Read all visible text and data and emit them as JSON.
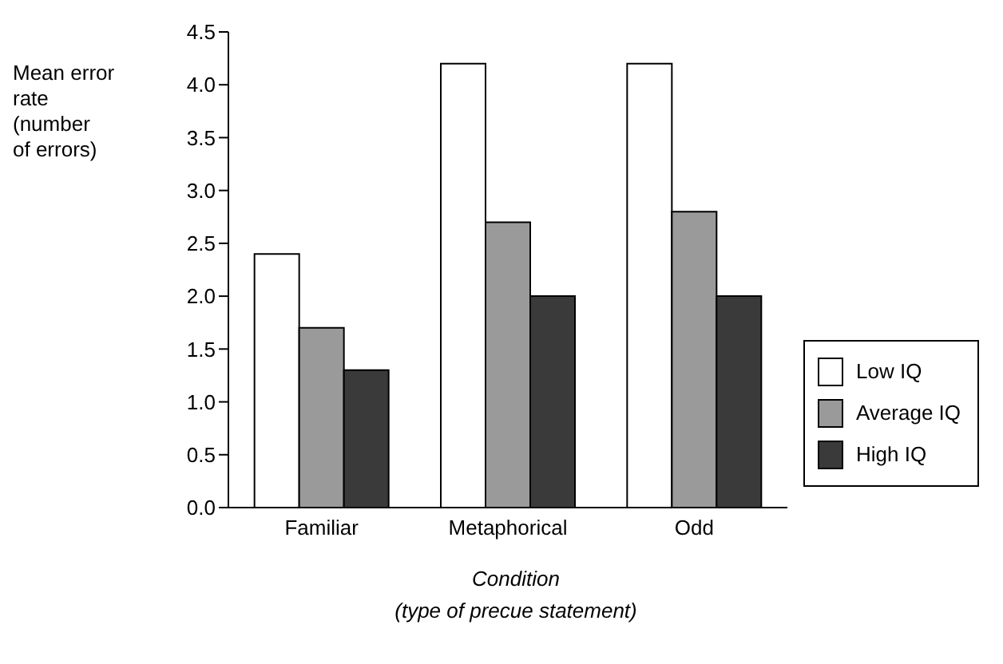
{
  "chart_data": {
    "type": "bar",
    "ylabel": "Mean error\nrate\n(number\nof errors)",
    "xlabel": "Condition\n(type of precue statement)",
    "categories": [
      "Familiar",
      "Metaphorical",
      "Odd"
    ],
    "series": [
      {
        "name": "Low IQ",
        "color": "#ffffff",
        "values": [
          2.4,
          4.2,
          4.2
        ]
      },
      {
        "name": "Average IQ",
        "color": "#9a9a9a",
        "values": [
          1.7,
          2.7,
          2.8
        ]
      },
      {
        "name": "High IQ",
        "color": "#3a3a3a",
        "values": [
          1.3,
          2.0,
          2.0
        ]
      }
    ],
    "ylim": [
      0,
      4.5
    ],
    "yticks": [
      {
        "value": 0,
        "label": "0.0"
      },
      0.5,
      {
        "value": 1,
        "label": "1.0"
      },
      1.5,
      {
        "value": 2,
        "label": "2.0"
      },
      2.5,
      {
        "value": 3,
        "label": "3.0"
      },
      3.5,
      {
        "value": 4,
        "label": "4.0"
      },
      4.5
    ],
    "grid": false,
    "legend": "right"
  }
}
